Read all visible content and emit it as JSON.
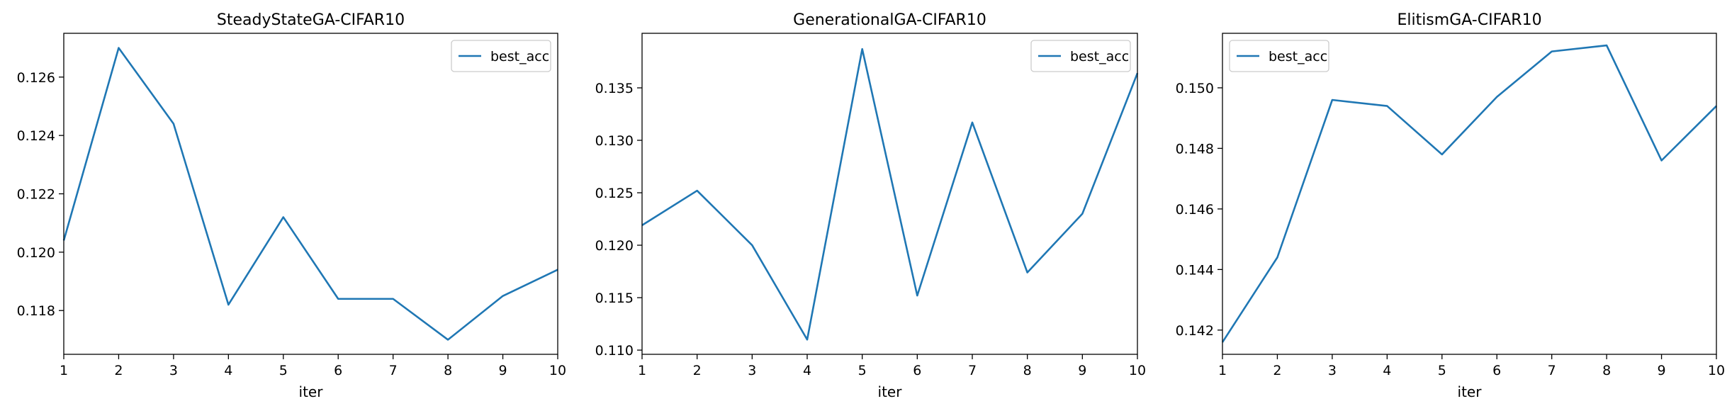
{
  "chart_data": [
    {
      "type": "line",
      "title": "SteadyStateGA-CIFAR10",
      "xlabel": "iter",
      "ylabel": "",
      "x": [
        1,
        2,
        3,
        4,
        5,
        6,
        7,
        8,
        9,
        10
      ],
      "series": [
        {
          "name": "best_acc",
          "color": "#1f77b4",
          "values": [
            0.1204,
            0.127,
            0.1244,
            0.1182,
            0.1212,
            0.1184,
            0.1184,
            0.117,
            0.1185,
            0.1194
          ]
        }
      ],
      "xlim": [
        1,
        10
      ],
      "ylim": [
        0.1165,
        0.1275
      ],
      "xticks": [
        1,
        2,
        3,
        4,
        5,
        6,
        7,
        8,
        9,
        10
      ],
      "yticks": [
        0.118,
        0.12,
        0.122,
        0.124,
        0.126
      ],
      "ytick_labels": [
        "0.118",
        "0.120",
        "0.122",
        "0.124",
        "0.126"
      ],
      "legend": "top-right",
      "grid": false
    },
    {
      "type": "line",
      "title": "GenerationalGA-CIFAR10",
      "xlabel": "iter",
      "ylabel": "",
      "x": [
        1,
        2,
        3,
        4,
        5,
        6,
        7,
        8,
        9,
        10
      ],
      "series": [
        {
          "name": "best_acc",
          "color": "#1f77b4",
          "values": [
            0.1219,
            0.1252,
            0.12,
            0.111,
            0.1387,
            0.1152,
            0.1317,
            0.1174,
            0.123,
            0.1364
          ]
        }
      ],
      "xlim": [
        1,
        10
      ],
      "ylim": [
        0.1096,
        0.1402
      ],
      "xticks": [
        1,
        2,
        3,
        4,
        5,
        6,
        7,
        8,
        9,
        10
      ],
      "yticks": [
        0.11,
        0.115,
        0.12,
        0.125,
        0.13,
        0.135
      ],
      "ytick_labels": [
        "0.110",
        "0.115",
        "0.120",
        "0.125",
        "0.130",
        "0.135"
      ],
      "legend": "top-right",
      "grid": false
    },
    {
      "type": "line",
      "title": "ElitismGA-CIFAR10",
      "xlabel": "iter",
      "ylabel": "",
      "x": [
        1,
        2,
        3,
        4,
        5,
        6,
        7,
        8,
        9,
        10
      ],
      "series": [
        {
          "name": "best_acc",
          "color": "#1f77b4",
          "values": [
            0.1416,
            0.1444,
            0.1496,
            0.1494,
            0.1478,
            0.1497,
            0.1512,
            0.1514,
            0.1476,
            0.1494
          ]
        }
      ],
      "xlim": [
        1,
        10
      ],
      "ylim": [
        0.1412,
        0.1518
      ],
      "xticks": [
        1,
        2,
        3,
        4,
        5,
        6,
        7,
        8,
        9,
        10
      ],
      "yticks": [
        0.142,
        0.144,
        0.146,
        0.148,
        0.15
      ],
      "ytick_labels": [
        "0.142",
        "0.144",
        "0.146",
        "0.148",
        "0.150"
      ],
      "legend": "top-left",
      "grid": false
    }
  ]
}
